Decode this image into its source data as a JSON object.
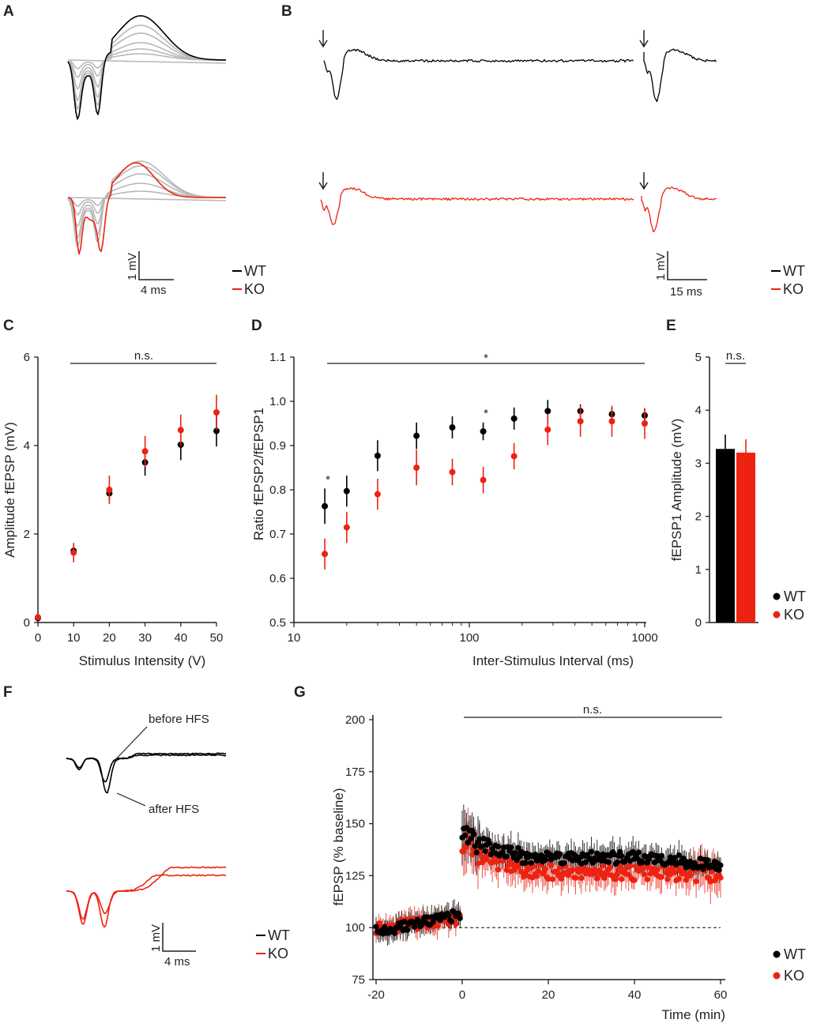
{
  "colors": {
    "wt": "#000000",
    "ko": "#ee2211",
    "gray": "#b8b8b8"
  },
  "legend": {
    "wt": "WT",
    "ko": "KO"
  },
  "panels": {
    "A": {
      "label": "A",
      "scale_y": "1 mV",
      "scale_x": "4 ms"
    },
    "B": {
      "label": "B",
      "scale_y": "1 mV",
      "scale_x": "15 ms"
    },
    "C": {
      "label": "C"
    },
    "D": {
      "label": "D"
    },
    "E": {
      "label": "E"
    },
    "F": {
      "label": "F",
      "scale_y": "1 mV",
      "scale_x": "4 ms",
      "annot_before": "before HFS",
      "annot_after": "after HFS"
    },
    "G": {
      "label": "G"
    }
  },
  "chart_data": [
    {
      "id": "C",
      "type": "scatter",
      "xlabel": "Stimulus Intensity (V)",
      "ylabel": "Amplitude fEPSP (mV)",
      "xlim": [
        0,
        50
      ],
      "ylim": [
        0,
        6
      ],
      "xticks": [
        "0",
        "10",
        "20",
        "30",
        "40",
        "50"
      ],
      "yticks": [
        "0",
        "2",
        "4",
        "6"
      ],
      "significance": "n.s.",
      "series": [
        {
          "name": "WT",
          "x": [
            0,
            10,
            20,
            30,
            40,
            50
          ],
          "y": [
            0.1,
            1.62,
            2.92,
            3.62,
            4.02,
            4.33
          ],
          "err": [
            0.03,
            0.12,
            0.15,
            0.3,
            0.35,
            0.35
          ]
        },
        {
          "name": "KO",
          "x": [
            0,
            10,
            20,
            30,
            40,
            50
          ],
          "y": [
            0.12,
            1.58,
            3.0,
            3.87,
            4.35,
            4.75
          ],
          "err": [
            0.03,
            0.22,
            0.32,
            0.35,
            0.35,
            0.4
          ]
        }
      ]
    },
    {
      "id": "D",
      "type": "scatter",
      "xlabel": "Inter-Stimulus Interval (ms)",
      "ylabel": "Ratio fEPSP2/fEPSP1",
      "xscale": "log",
      "xlim": [
        10,
        1000
      ],
      "ylim": [
        0.5,
        1.1
      ],
      "xticks": [
        "10",
        "100",
        "1000"
      ],
      "yticks": [
        "0.5",
        "0.6",
        "0.7",
        "0.8",
        "0.9",
        "1.0",
        "1.1"
      ],
      "significance": "*",
      "point_stars": [
        "*",
        "*"
      ],
      "series": [
        {
          "name": "WT",
          "x": [
            15,
            20,
            30,
            50,
            80,
            120,
            180,
            280,
            430,
            650,
            1000
          ],
          "y": [
            0.763,
            0.797,
            0.877,
            0.922,
            0.941,
            0.932,
            0.961,
            0.978,
            0.978,
            0.971,
            0.968
          ],
          "err": [
            0.04,
            0.035,
            0.035,
            0.03,
            0.025,
            0.02,
            0.025,
            0.025,
            0.015,
            0.015,
            0.015
          ]
        },
        {
          "name": "KO",
          "x": [
            15,
            20,
            30,
            50,
            80,
            120,
            180,
            280,
            430,
            650,
            1000
          ],
          "y": [
            0.655,
            0.715,
            0.79,
            0.85,
            0.84,
            0.822,
            0.876,
            0.936,
            0.955,
            0.955,
            0.95
          ],
          "err": [
            0.035,
            0.035,
            0.035,
            0.04,
            0.03,
            0.03,
            0.03,
            0.035,
            0.035,
            0.035,
            0.035
          ]
        }
      ]
    },
    {
      "id": "E",
      "type": "bar",
      "ylabel": "fEPSP1 Amplitude (mV)",
      "ylim": [
        0,
        5
      ],
      "yticks": [
        "0",
        "1",
        "2",
        "3",
        "4",
        "5"
      ],
      "significance": "n.s.",
      "series": [
        {
          "name": "WT",
          "values": [
            3.27
          ],
          "err": [
            0.27
          ]
        },
        {
          "name": "KO",
          "values": [
            3.2
          ],
          "err": [
            0.25
          ]
        }
      ]
    },
    {
      "id": "G",
      "type": "scatter",
      "xlabel": "Time (min)",
      "ylabel": "fEPSP (% baseline)",
      "xlim": [
        -20,
        60
      ],
      "ylim": [
        75,
        200
      ],
      "xticks": [
        "-20",
        "0",
        "20",
        "40",
        "60"
      ],
      "yticks": [
        "75",
        "100",
        "125",
        "150",
        "175",
        "200"
      ],
      "baseline": 100,
      "significance": "n.s.",
      "series": [
        {
          "name": "WT",
          "segments": [
            {
              "t0": -20,
              "t1": -0.5,
              "v0": 98,
              "v1": 106,
              "err": 6
            },
            {
              "t0": 0,
              "t1": 4,
              "v0": 146,
              "v1": 140,
              "err": 12
            },
            {
              "t0": 4,
              "t1": 15,
              "v0": 140,
              "v1": 134,
              "err": 8
            },
            {
              "t0": 15,
              "t1": 52,
              "v0": 134,
              "v1": 133,
              "err": 7
            },
            {
              "t0": 52,
              "t1": 60,
              "v0": 131,
              "v1": 130,
              "err": 6
            }
          ]
        },
        {
          "name": "KO",
          "segments": [
            {
              "t0": -20,
              "t1": -0.5,
              "v0": 100,
              "v1": 104,
              "err": 6
            },
            {
              "t0": 0,
              "t1": 4,
              "v0": 143,
              "v1": 135,
              "err": 14
            },
            {
              "t0": 4,
              "t1": 15,
              "v0": 135,
              "v1": 127,
              "err": 9
            },
            {
              "t0": 15,
              "t1": 52,
              "v0": 127,
              "v1": 126,
              "err": 8
            },
            {
              "t0": 52,
              "t1": 60,
              "v0": 126,
              "v1": 126,
              "err": 10
            }
          ]
        }
      ]
    }
  ]
}
